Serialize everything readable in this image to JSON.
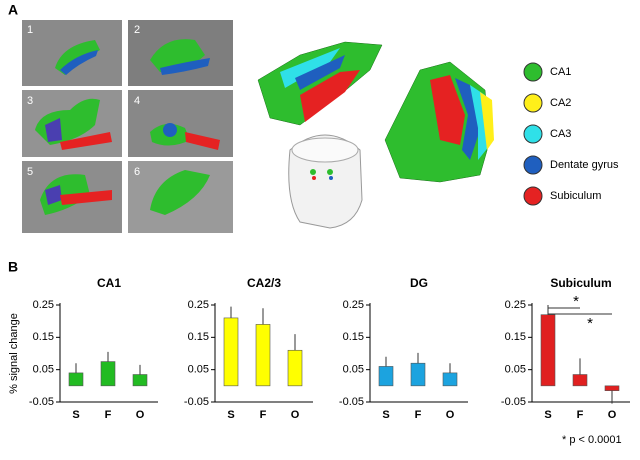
{
  "panel_a": {
    "label": "A",
    "slice_numbers": [
      "1",
      "2",
      "3",
      "4",
      "5",
      "6"
    ],
    "legend": [
      {
        "name": "CA1",
        "color": "#2ebd2e"
      },
      {
        "name": "CA2",
        "color": "#ffef1a"
      },
      {
        "name": "CA3",
        "color": "#2fe0e8"
      },
      {
        "name": "Dentate gyrus",
        "color": "#1f5fbf"
      },
      {
        "name": "Subiculum",
        "color": "#e52222"
      }
    ]
  },
  "panel_b": {
    "label": "B",
    "footnote": "* p < 0.0001"
  },
  "chart_data": [
    {
      "type": "bar",
      "title": "CA1",
      "ylabel": "% signal change",
      "categories": [
        "S",
        "F",
        "O"
      ],
      "values": [
        0.04,
        0.075,
        0.035
      ],
      "errors": [
        0.03,
        0.03,
        0.03
      ],
      "color": "#22bb22",
      "ylim": [
        -0.05,
        0.25
      ],
      "yticks": [
        -0.05,
        0.05,
        0.15,
        0.25
      ]
    },
    {
      "type": "bar",
      "title": "CA2/3",
      "categories": [
        "S",
        "F",
        "O"
      ],
      "values": [
        0.21,
        0.19,
        0.11
      ],
      "errors": [
        0.035,
        0.05,
        0.05
      ],
      "color": "#ffff00",
      "ylim": [
        -0.05,
        0.25
      ],
      "yticks": [
        -0.05,
        0.05,
        0.15,
        0.25
      ]
    },
    {
      "type": "bar",
      "title": "DG",
      "categories": [
        "S",
        "F",
        "O"
      ],
      "values": [
        0.06,
        0.07,
        0.04
      ],
      "errors": [
        0.03,
        0.032,
        0.03
      ],
      "color": "#1ca3df",
      "ylim": [
        -0.05,
        0.25
      ],
      "yticks": [
        -0.05,
        0.05,
        0.15,
        0.25
      ]
    },
    {
      "type": "bar",
      "title": "Subiculum",
      "categories": [
        "S",
        "F",
        "O"
      ],
      "values": [
        0.22,
        0.035,
        -0.015
      ],
      "errors": [
        0.03,
        0.05,
        0.04
      ],
      "color": "#e02020",
      "ylim": [
        -0.05,
        0.25
      ],
      "yticks": [
        -0.05,
        0.05,
        0.15,
        0.25
      ],
      "annotations": [
        "*",
        "*"
      ]
    }
  ]
}
